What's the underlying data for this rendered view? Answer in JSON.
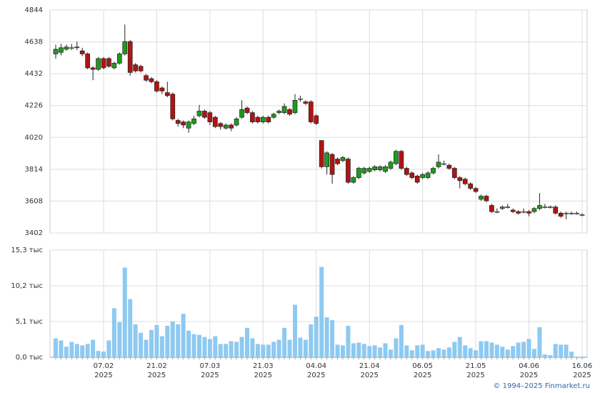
{
  "chart_data": {
    "type": "candlestick",
    "source": "© 1994–2025 Finmarket.ru",
    "categories": [
      null,
      null,
      null,
      null,
      null,
      null,
      null,
      null,
      null,
      "07.02\n2025",
      null,
      null,
      null,
      null,
      null,
      null,
      null,
      null,
      null,
      "21.02\n2025",
      null,
      null,
      null,
      null,
      null,
      null,
      null,
      null,
      null,
      "07.03\n2025",
      null,
      null,
      null,
      null,
      null,
      null,
      null,
      null,
      null,
      "21.03\n2025",
      null,
      null,
      null,
      null,
      null,
      null,
      null,
      null,
      null,
      "04.04\n2025",
      null,
      null,
      null,
      null,
      null,
      null,
      null,
      null,
      null,
      "21.04\n2025",
      null,
      null,
      null,
      null,
      null,
      null,
      null,
      null,
      null,
      "06.05\n2025",
      null,
      null,
      null,
      null,
      null,
      null,
      null,
      null,
      null,
      "21.05\n2025",
      null,
      null,
      null,
      null,
      null,
      null,
      null,
      null,
      null,
      "04.06\n2025",
      null,
      null,
      null,
      null,
      null,
      null,
      null,
      null,
      null,
      "16.06\n2025"
    ],
    "open": [
      4560,
      4570,
      4590,
      4600,
      4600,
      4580,
      4560,
      4470,
      4460,
      4530,
      4530,
      4470,
      4500,
      4560,
      4640,
      4490,
      4480,
      4420,
      4400,
      4380,
      4340,
      4310,
      4300,
      4130,
      4120,
      4080,
      4110,
      4160,
      4190,
      4180,
      4150,
      4110,
      4080,
      4100,
      4100,
      4150,
      4210,
      4180,
      4150,
      4120,
      4150,
      4150,
      4180,
      4180,
      4200,
      4180,
      4270,
      4250,
      4250,
      4160,
      4000,
      3830,
      3910,
      3880,
      3870,
      3880,
      3730,
      3760,
      3790,
      3800,
      3810,
      3810,
      3800,
      3820,
      3850,
      3930,
      3820,
      3790,
      3770,
      3760,
      3760,
      3790,
      3830,
      3850,
      3840,
      3820,
      3760,
      3750,
      3720,
      3690,
      3620,
      3640,
      3580,
      3540,
      3560,
      3570,
      3550,
      3540,
      3540,
      3540,
      3540,
      3560,
      3570,
      3570,
      3570,
      3530,
      3530,
      3530,
      3530,
      3520
    ],
    "high": [
      4620,
      4625,
      4620,
      4625,
      4640,
      4600,
      4570,
      4480,
      4540,
      4540,
      4540,
      4510,
      4570,
      4750,
      4650,
      4500,
      4490,
      4430,
      4410,
      4390,
      4350,
      4380,
      4310,
      4140,
      4130,
      4130,
      4160,
      4230,
      4200,
      4190,
      4160,
      4120,
      4110,
      4110,
      4150,
      4260,
      4220,
      4190,
      4160,
      4160,
      4160,
      4180,
      4200,
      4240,
      4210,
      4300,
      4290,
      4260,
      4260,
      4170,
      4000,
      3930,
      3920,
      3890,
      3900,
      3890,
      3770,
      3830,
      3830,
      3830,
      3840,
      3840,
      3840,
      3870,
      3940,
      3940,
      3830,
      3800,
      3780,
      3790,
      3800,
      3830,
      3910,
      3870,
      3850,
      3830,
      3770,
      3760,
      3730,
      3700,
      3650,
      3650,
      3590,
      3560,
      3580,
      3590,
      3560,
      3550,
      3560,
      3550,
      3570,
      3660,
      3590,
      3580,
      3580,
      3540,
      3540,
      3540,
      3540,
      3530
    ],
    "low": [
      4530,
      4550,
      4580,
      4585,
      4585,
      4545,
      4460,
      4390,
      4450,
      4460,
      4470,
      4460,
      4490,
      4550,
      4420,
      4440,
      4440,
      4380,
      4370,
      4310,
      4300,
      4280,
      4130,
      4090,
      4080,
      4050,
      4100,
      4150,
      4140,
      4100,
      4080,
      4070,
      4070,
      4060,
      4090,
      4140,
      4170,
      4110,
      4110,
      4110,
      4110,
      4140,
      4170,
      4170,
      4160,
      4170,
      4250,
      4230,
      4110,
      4100,
      3820,
      3780,
      3720,
      3840,
      3860,
      3720,
      3720,
      3750,
      3780,
      3790,
      3800,
      3800,
      3790,
      3810,
      3840,
      3810,
      3770,
      3750,
      3720,
      3750,
      3750,
      3780,
      3820,
      3840,
      3810,
      3750,
      3690,
      3710,
      3680,
      3660,
      3610,
      3600,
      3530,
      3530,
      3550,
      3560,
      3530,
      3520,
      3530,
      3510,
      3530,
      3550,
      3560,
      3560,
      3520,
      3500,
      3490,
      3520,
      3520,
      3510
    ],
    "close": [
      4590,
      4600,
      4605,
      4600,
      4605,
      4560,
      4470,
      4460,
      4530,
      4470,
      4480,
      4500,
      4560,
      4640,
      4440,
      4450,
      4450,
      4390,
      4380,
      4320,
      4320,
      4290,
      4140,
      4110,
      4100,
      4120,
      4140,
      4190,
      4150,
      4120,
      4090,
      4090,
      4100,
      4080,
      4140,
      4200,
      4180,
      4120,
      4120,
      4150,
      4120,
      4170,
      4190,
      4220,
      4170,
      4260,
      4270,
      4240,
      4120,
      4110,
      3830,
      3920,
      3780,
      3850,
      3890,
      3730,
      3760,
      3820,
      3820,
      3820,
      3830,
      3830,
      3830,
      3860,
      3930,
      3820,
      3780,
      3760,
      3730,
      3780,
      3790,
      3820,
      3860,
      3850,
      3820,
      3760,
      3740,
      3720,
      3690,
      3670,
      3640,
      3610,
      3540,
      3540,
      3570,
      3570,
      3540,
      3530,
      3540,
      3530,
      3560,
      3580,
      3570,
      3570,
      3530,
      3510,
      3530,
      3530,
      3530,
      3520
    ],
    "volume": [
      2.7,
      2.4,
      1.5,
      2.2,
      1.9,
      1.7,
      1.9,
      2.5,
      0.9,
      0.8,
      2.4,
      7.0,
      5.0,
      12.8,
      8.3,
      4.7,
      3.5,
      2.5,
      3.9,
      4.6,
      3.0,
      4.5,
      5.1,
      4.7,
      6.2,
      3.8,
      3.3,
      3.2,
      2.9,
      2.6,
      3.0,
      1.9,
      1.9,
      2.3,
      2.2,
      2.9,
      4.2,
      2.7,
      1.9,
      1.8,
      1.8,
      2.2,
      2.5,
      4.2,
      2.5,
      7.5,
      2.8,
      2.5,
      4.7,
      5.8,
      12.9,
      5.7,
      5.3,
      1.8,
      1.7,
      4.5,
      2.0,
      2.1,
      1.9,
      1.6,
      1.7,
      1.4,
      2.0,
      1.1,
      2.7,
      4.6,
      1.7,
      1.0,
      1.7,
      1.8,
      0.9,
      1.0,
      1.3,
      1.1,
      1.4,
      2.2,
      2.9,
      1.7,
      1.3,
      1.0,
      2.3,
      2.3,
      2.1,
      1.8,
      1.5,
      1.1,
      1.6,
      2.1,
      2.2,
      2.6,
      1.2,
      4.3,
      0.4,
      0.3,
      1.9,
      1.8,
      1.8,
      0.8,
      0.1,
      0.1
    ],
    "up_color": "#1e9a1e",
    "down_color": "#b01414",
    "volume_color": "#8ec9f0",
    "ylim": [
      3402,
      4844
    ],
    "yticks": [
      3402,
      3608,
      3814,
      4020,
      4226,
      4432,
      4638,
      4844
    ],
    "y2lim": [
      0,
      15.3
    ],
    "y2ticks": [
      {
        "value": 0,
        "label": "0,0 тыс"
      },
      {
        "value": 5.1,
        "label": "5,1 тыс"
      },
      {
        "value": 10.2,
        "label": "10,2 тыс"
      },
      {
        "value": 15.3,
        "label": "15,3 тыс"
      }
    ],
    "grid": true
  }
}
